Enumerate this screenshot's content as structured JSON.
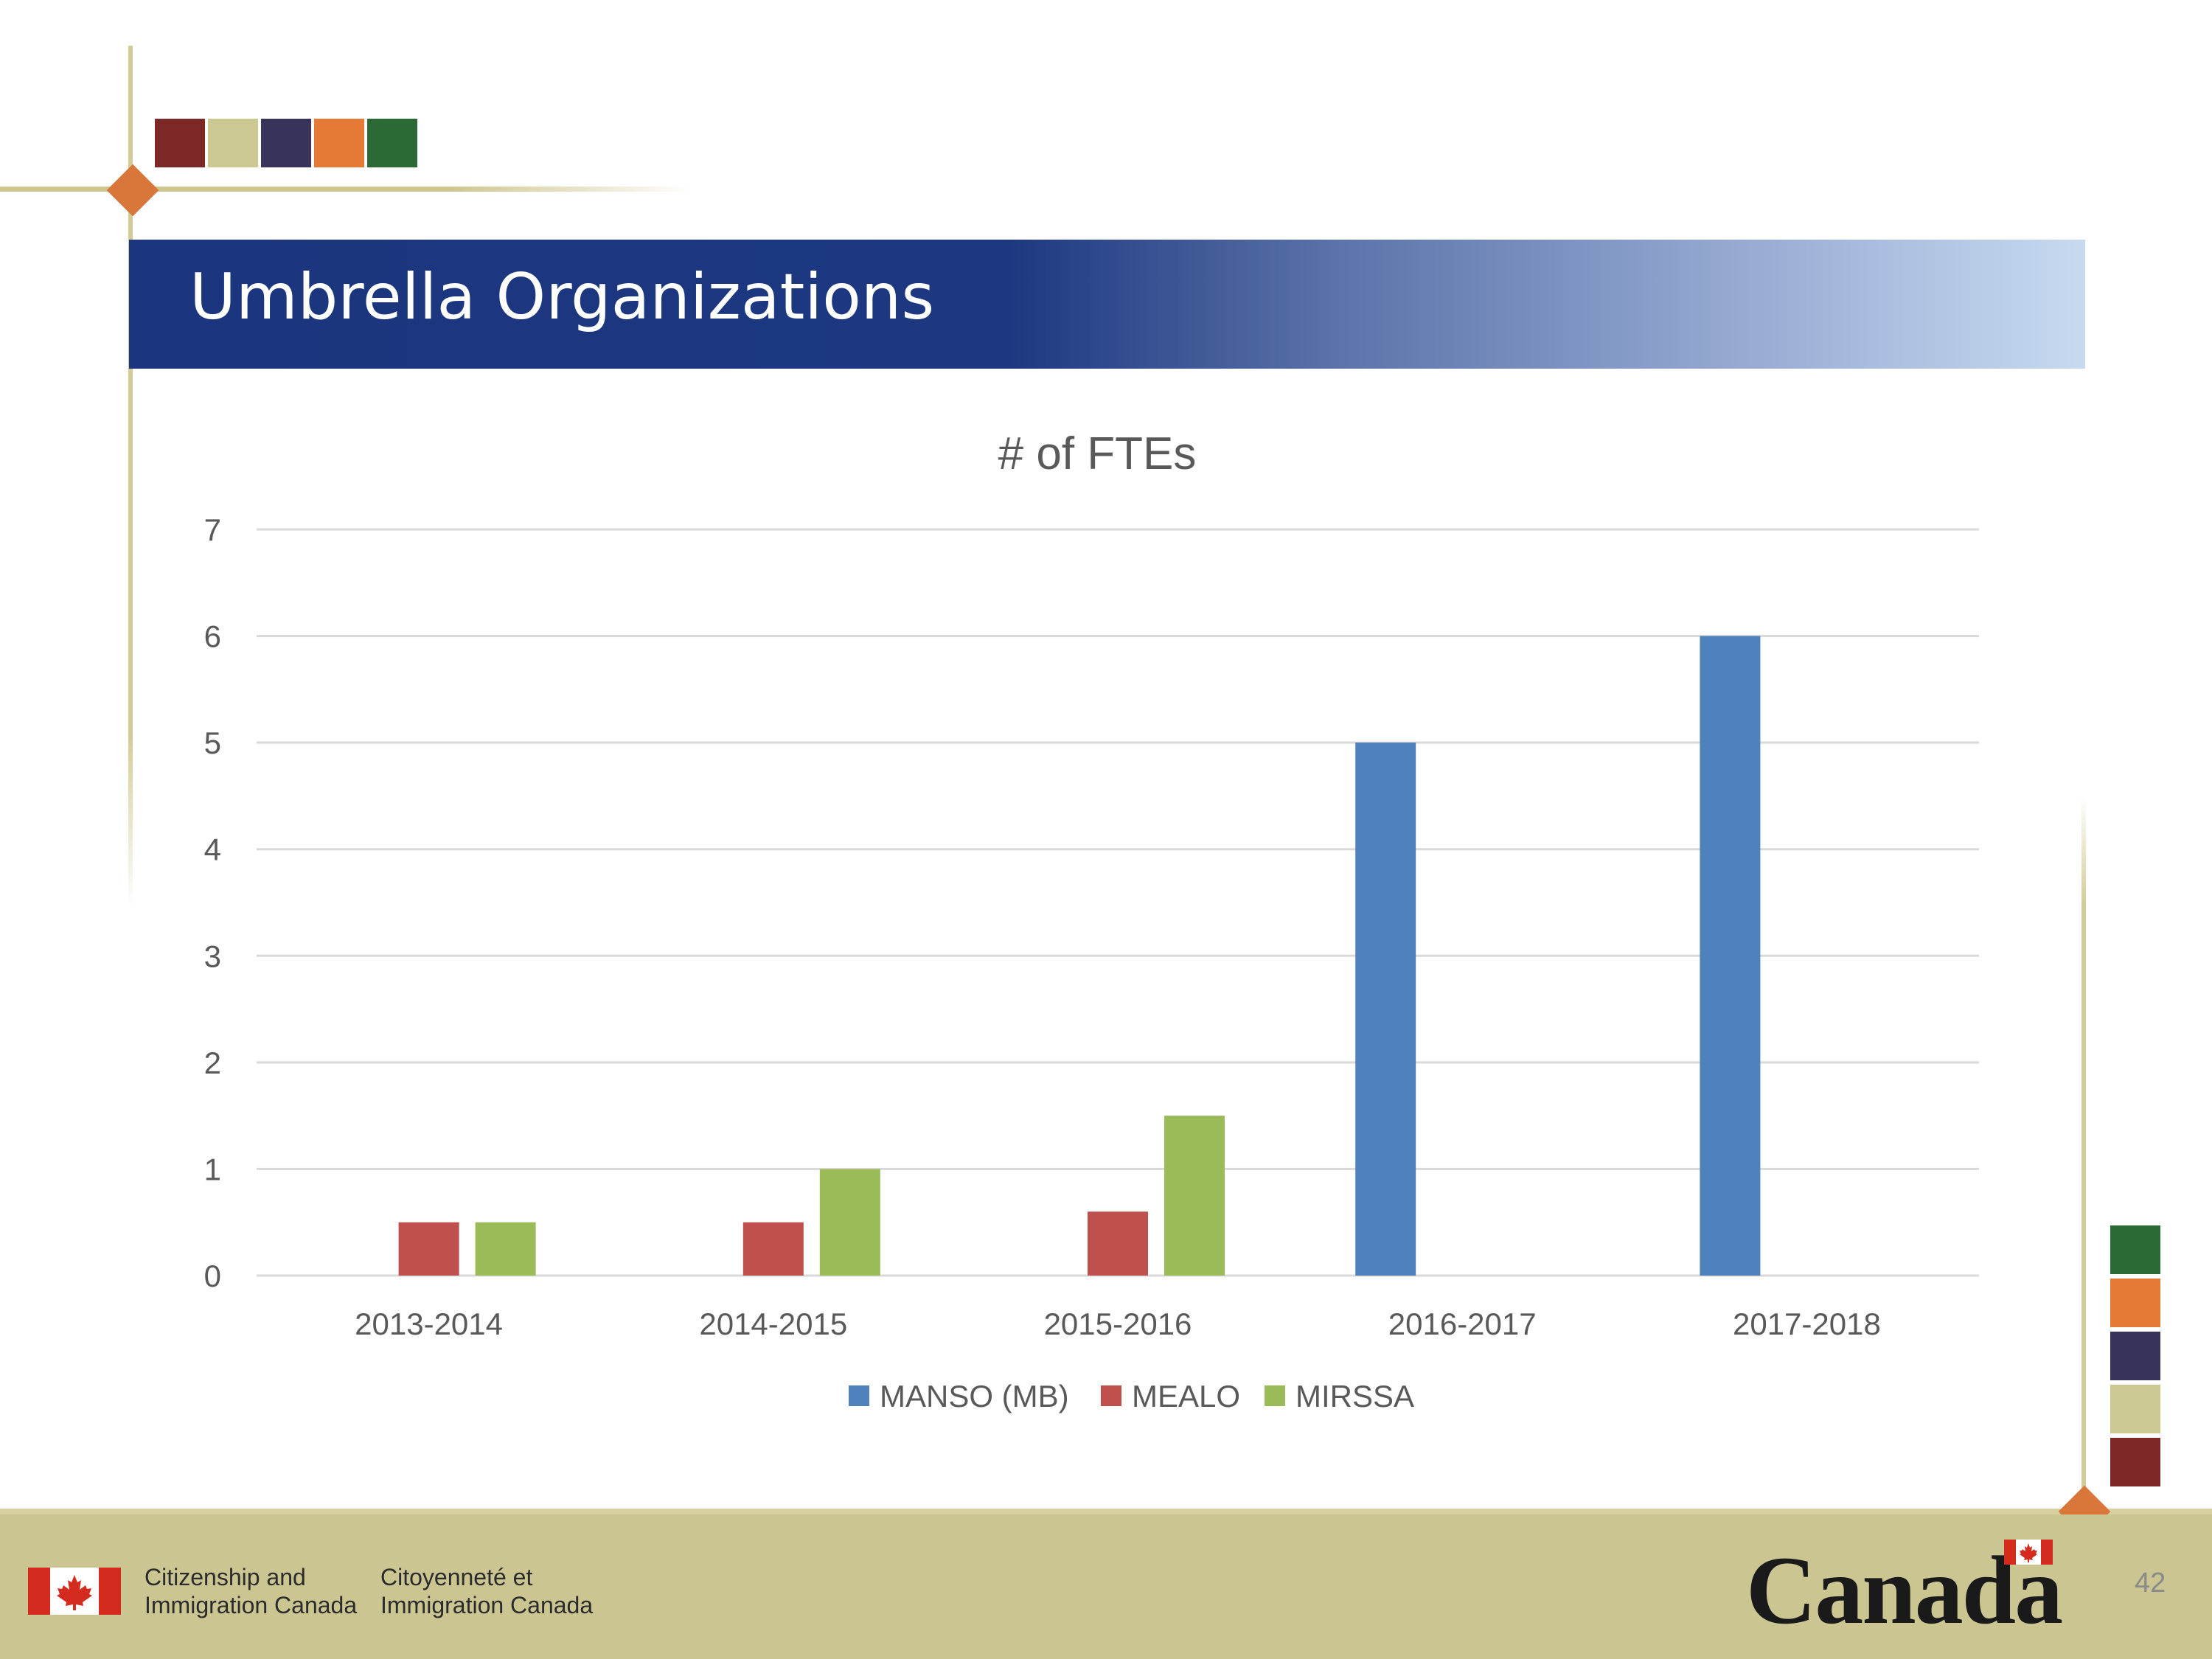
{
  "slide": {
    "title": "Umbrella Organizations",
    "page_number": "42"
  },
  "footer": {
    "dept_en_line1": "Citizenship and",
    "dept_en_line2": "Immigration Canada",
    "dept_fr_line1": "Citoyenneté et",
    "dept_fr_line2": "Immigration Canada",
    "wordmark": "Canada"
  },
  "palette": {
    "top_swatches": [
      "#7b2826",
      "#cbc892",
      "#36345a",
      "#e57a37",
      "#2c6a35"
    ],
    "side_swatches": [
      "#2c6a35",
      "#e57a37",
      "#36345a",
      "#cbc892",
      "#7b2826"
    ]
  },
  "chart_data": {
    "type": "bar",
    "title": "# of FTEs",
    "xlabel": "",
    "ylabel": "",
    "categories": [
      "2013-2014",
      "2014-2015",
      "2015-2016",
      "2016-2017",
      "2017-2018"
    ],
    "series": [
      {
        "name": "MANSO (MB)",
        "color": "#4f81bd",
        "values": [
          0,
          0,
          0,
          5,
          6
        ]
      },
      {
        "name": "MEALO",
        "color": "#c0504d",
        "values": [
          0.5,
          0.5,
          0.6,
          0,
          0
        ]
      },
      {
        "name": "MIRSSA",
        "color": "#9bbb59",
        "values": [
          0.5,
          1,
          1.5,
          0,
          0
        ]
      }
    ],
    "ylim": [
      0,
      7
    ],
    "yticks": [
      "0",
      "1",
      "2",
      "3",
      "4",
      "5",
      "6",
      "7"
    ],
    "grid": true,
    "legend": "bottom"
  }
}
